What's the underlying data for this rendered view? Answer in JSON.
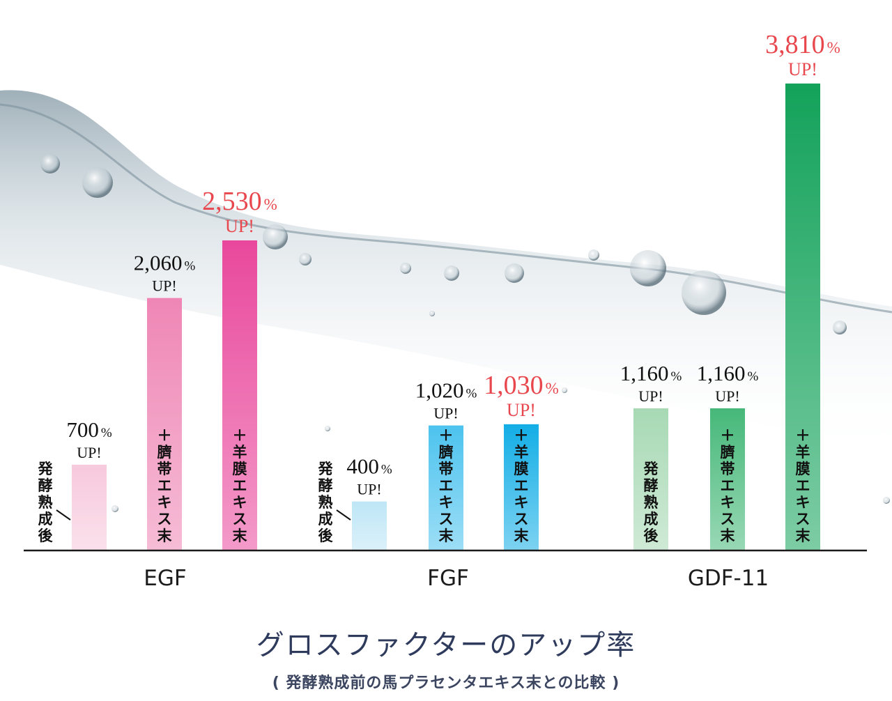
{
  "title": "グロスファクターのアップ率",
  "subtitle": "( 発酵熟成前の馬プラセンタエキス末との比較 )",
  "chart_data": {
    "type": "bar",
    "categories": [
      "EGF",
      "FGF",
      "GDF-11"
    ],
    "series": [
      {
        "name": "発酵熟成後",
        "values": [
          700,
          400,
          1160
        ]
      },
      {
        "name": "＋臍帯エキス末",
        "values": [
          2060,
          1020,
          1160
        ]
      },
      {
        "name": "＋羊膜エキス末",
        "values": [
          2530,
          1030,
          3810
        ]
      }
    ],
    "value_labels": [
      [
        "700",
        "2,060",
        "2,530"
      ],
      [
        "400",
        "1,020",
        "1,030"
      ],
      [
        "1,160",
        "1,160",
        "3,810"
      ]
    ],
    "unit": "%",
    "up_text": "UP!",
    "ylim": [
      0,
      3900
    ],
    "highlight_color": "#e8474d",
    "colors": {
      "EGF": [
        "#f7c9dd",
        "#ef86b5",
        "#e9489c"
      ],
      "FGF": [
        "#bde6f6",
        "#4cc3ee",
        "#13aee6"
      ],
      "GDF-11": [
        "#a7d9b4",
        "#46b879",
        "#13a25a"
      ]
    }
  }
}
